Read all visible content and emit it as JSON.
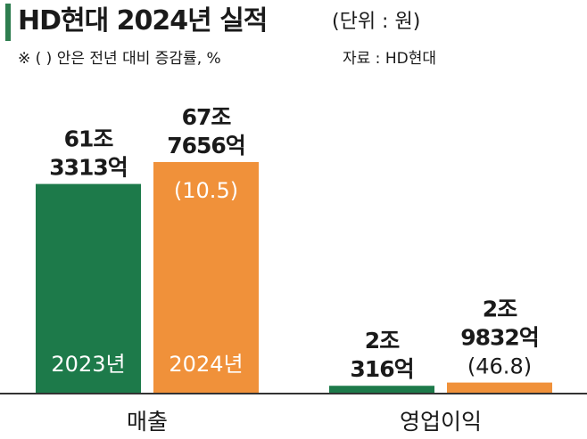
{
  "header": {
    "title": "HD현대 2024년 실적",
    "unit": "(단위 : 원)",
    "note": "※ (  ) 안은 전년 대비 증감률, %",
    "source": "자료 : HD현대"
  },
  "colors": {
    "series_2023": "#1d7a4a",
    "series_2024": "#f0913a",
    "accent_bar": "#2e7d4f",
    "axis": "#333333"
  },
  "chart_data": {
    "type": "bar",
    "categories": [
      "매출",
      "영업이익"
    ],
    "unit": "원",
    "series": [
      {
        "name": "2023년",
        "values": [
          613313,
          20316
        ],
        "value_labels": [
          [
            "61조",
            "3313억"
          ],
          [
            "2조",
            "316억"
          ]
        ]
      },
      {
        "name": "2024년",
        "values": [
          677656,
          29832
        ],
        "value_labels": [
          [
            "67조",
            "7656억"
          ],
          [
            "2조",
            "9832억"
          ]
        ],
        "change_labels": [
          "(10.5)",
          "(46.8)"
        ]
      }
    ],
    "value_units": "억원",
    "legend": "inside-bars",
    "grid": false
  }
}
